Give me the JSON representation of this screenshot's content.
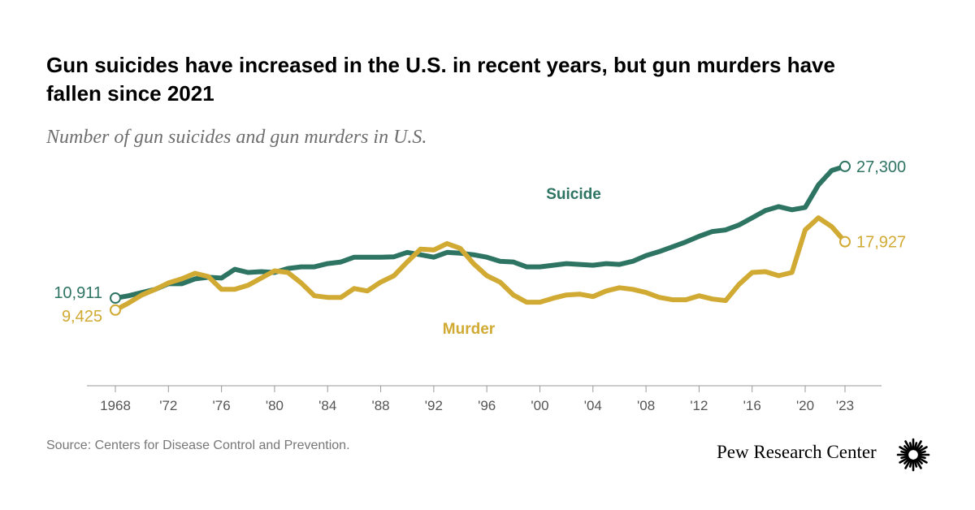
{
  "title": "Gun suicides have increased in the U.S. in recent years, but gun murders have fallen since 2021",
  "subtitle": "Number of gun suicides and gun murders in U.S.",
  "source": "Source: Centers for Disease Control and Prevention.",
  "brand": "Pew Research Center",
  "chart_data": {
    "type": "line",
    "x_ticks": [
      1968,
      1972,
      1976,
      1980,
      1984,
      1988,
      1992,
      1996,
      2000,
      2004,
      2008,
      2012,
      2016,
      2020,
      2023
    ],
    "x_tick_labels": [
      "1968",
      "'72",
      "'76",
      "'80",
      "'84",
      "'88",
      "'92",
      "'96",
      "'00",
      "'04",
      "'08",
      "'12",
      "'16",
      "'20",
      "'23"
    ],
    "xlim": [
      1968,
      2023
    ],
    "ylim": [
      0,
      28000
    ],
    "grid": false,
    "colors": {
      "suicide": "#2e7463",
      "murder": "#d1aa33"
    },
    "series": [
      {
        "name": "Suicide",
        "key": "suicide",
        "start_label": "10,911",
        "end_label": "27,300",
        "points": [
          [
            1968,
            10911
          ],
          [
            1969,
            11200
          ],
          [
            1970,
            11600
          ],
          [
            1971,
            12000
          ],
          [
            1972,
            12700
          ],
          [
            1973,
            12700
          ],
          [
            1974,
            13300
          ],
          [
            1975,
            13500
          ],
          [
            1976,
            13400
          ],
          [
            1977,
            14500
          ],
          [
            1978,
            14100
          ],
          [
            1979,
            14200
          ],
          [
            1980,
            14100
          ],
          [
            1981,
            14600
          ],
          [
            1982,
            14800
          ],
          [
            1983,
            14800
          ],
          [
            1984,
            15200
          ],
          [
            1985,
            15400
          ],
          [
            1986,
            16000
          ],
          [
            1987,
            16000
          ],
          [
            1988,
            16000
          ],
          [
            1989,
            16050
          ],
          [
            1990,
            16600
          ],
          [
            1991,
            16300
          ],
          [
            1992,
            16000
          ],
          [
            1993,
            16600
          ],
          [
            1994,
            16500
          ],
          [
            1995,
            16300
          ],
          [
            1996,
            16000
          ],
          [
            1997,
            15500
          ],
          [
            1998,
            15400
          ],
          [
            1999,
            14800
          ],
          [
            2000,
            14800
          ],
          [
            2001,
            15000
          ],
          [
            2002,
            15200
          ],
          [
            2003,
            15100
          ],
          [
            2004,
            15000
          ],
          [
            2005,
            15200
          ],
          [
            2006,
            15100
          ],
          [
            2007,
            15500
          ],
          [
            2008,
            16200
          ],
          [
            2009,
            16700
          ],
          [
            2010,
            17300
          ],
          [
            2011,
            17900
          ],
          [
            2012,
            18600
          ],
          [
            2013,
            19200
          ],
          [
            2014,
            19400
          ],
          [
            2015,
            20000
          ],
          [
            2016,
            20900
          ],
          [
            2017,
            21800
          ],
          [
            2018,
            22300
          ],
          [
            2019,
            21900
          ],
          [
            2020,
            22200
          ],
          [
            2021,
            25000
          ],
          [
            2022,
            26800
          ],
          [
            2023,
            27300
          ]
        ]
      },
      {
        "name": "Murder",
        "key": "murder",
        "start_label": "9,425",
        "end_label": "17,927",
        "points": [
          [
            1968,
            9425
          ],
          [
            1969,
            10300
          ],
          [
            1970,
            11300
          ],
          [
            1971,
            12000
          ],
          [
            1972,
            12800
          ],
          [
            1973,
            13300
          ],
          [
            1974,
            14000
          ],
          [
            1975,
            13600
          ],
          [
            1976,
            12000
          ],
          [
            1977,
            12000
          ],
          [
            1978,
            12500
          ],
          [
            1979,
            13400
          ],
          [
            1980,
            14300
          ],
          [
            1981,
            14100
          ],
          [
            1982,
            12800
          ],
          [
            1983,
            11200
          ],
          [
            1984,
            11000
          ],
          [
            1985,
            11000
          ],
          [
            1986,
            12100
          ],
          [
            1987,
            11800
          ],
          [
            1988,
            12900
          ],
          [
            1989,
            13700
          ],
          [
            1990,
            15400
          ],
          [
            1991,
            17000
          ],
          [
            1992,
            16900
          ],
          [
            1993,
            17700
          ],
          [
            1994,
            17100
          ],
          [
            1995,
            15200
          ],
          [
            1996,
            13700
          ],
          [
            1997,
            12900
          ],
          [
            1998,
            11300
          ],
          [
            1999,
            10400
          ],
          [
            2000,
            10400
          ],
          [
            2001,
            10900
          ],
          [
            2002,
            11300
          ],
          [
            2003,
            11400
          ],
          [
            2004,
            11100
          ],
          [
            2005,
            11800
          ],
          [
            2006,
            12200
          ],
          [
            2007,
            12000
          ],
          [
            2008,
            11600
          ],
          [
            2009,
            11000
          ],
          [
            2010,
            10700
          ],
          [
            2011,
            10700
          ],
          [
            2012,
            11200
          ],
          [
            2013,
            10800
          ],
          [
            2014,
            10600
          ],
          [
            2015,
            12600
          ],
          [
            2016,
            14100
          ],
          [
            2017,
            14200
          ],
          [
            2018,
            13700
          ],
          [
            2019,
            14100
          ],
          [
            2020,
            19400
          ],
          [
            2021,
            20900
          ],
          [
            2022,
            19800
          ],
          [
            2023,
            17927
          ]
        ]
      }
    ],
    "annotations": [
      {
        "text": "Suicide",
        "series": "suicide"
      },
      {
        "text": "Murder",
        "series": "murder"
      }
    ]
  }
}
